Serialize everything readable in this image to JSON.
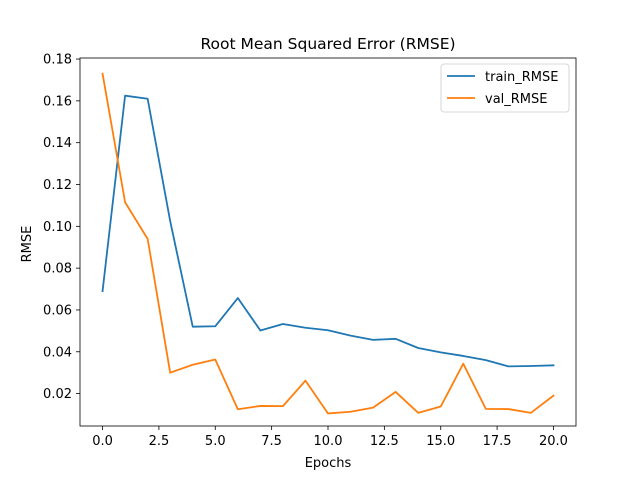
{
  "chart_data": {
    "type": "line",
    "title": "Root Mean Squared Error (RMSE)",
    "xlabel": "Epochs",
    "ylabel": "RMSE",
    "xlim": [
      -1,
      21
    ],
    "ylim": [
      0.0045,
      0.1805
    ],
    "x_ticks": [
      0.0,
      2.5,
      5.0,
      7.5,
      10.0,
      12.5,
      15.0,
      17.5,
      20.0
    ],
    "x_tick_labels": [
      "0.0",
      "2.5",
      "5.0",
      "7.5",
      "10.0",
      "12.5",
      "15.0",
      "17.5",
      "20.0"
    ],
    "y_ticks": [
      0.02,
      0.04,
      0.06,
      0.08,
      0.1,
      0.12,
      0.14,
      0.16,
      0.18
    ],
    "y_tick_labels": [
      "0.02",
      "0.04",
      "0.06",
      "0.08",
      "0.10",
      "0.12",
      "0.14",
      "0.16",
      "0.18"
    ],
    "grid": false,
    "legend_position": "top-right",
    "x": [
      0,
      1,
      2,
      3,
      4,
      5,
      6,
      7,
      8,
      9,
      10,
      11,
      12,
      13,
      14,
      15,
      16,
      17,
      18,
      19,
      20
    ],
    "series": [
      {
        "name": "train_RMSE",
        "color": "#1f77b4",
        "values": [
          0.069,
          0.1625,
          0.161,
          0.1025,
          0.052,
          0.0522,
          0.0657,
          0.0502,
          0.0533,
          0.0515,
          0.0503,
          0.0477,
          0.0457,
          0.0462,
          0.0418,
          0.0397,
          0.038,
          0.036,
          0.033,
          0.0332,
          0.0335
        ]
      },
      {
        "name": "val_RMSE",
        "color": "#ff7f0e",
        "values": [
          0.173,
          0.1115,
          0.094,
          0.03,
          0.0338,
          0.0363,
          0.0125,
          0.0141,
          0.014,
          0.0262,
          0.0105,
          0.0113,
          0.0133,
          0.0208,
          0.0108,
          0.0138,
          0.0343,
          0.0127,
          0.0126,
          0.0108,
          0.019
        ]
      }
    ]
  }
}
